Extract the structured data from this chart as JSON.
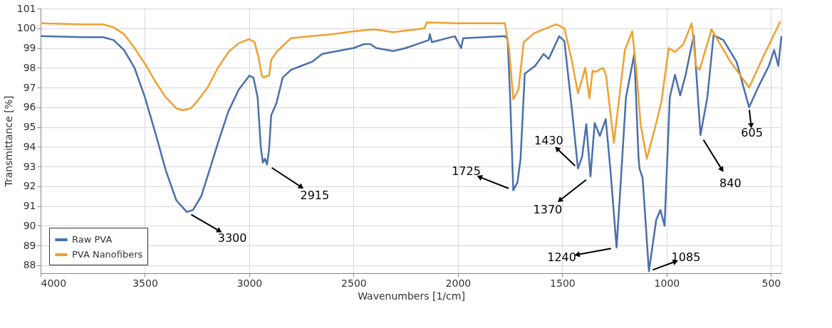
{
  "chart_data": {
    "type": "line",
    "xlabel": "Wavenumbers [1/cm]",
    "ylabel": "Transmittance [%]",
    "xlim": [
      4000,
      450
    ],
    "xticks": [
      {
        "value": 4000,
        "label": "4000"
      },
      {
        "value": 3500,
        "label": "3500"
      },
      {
        "value": 3000,
        "label": "3000"
      },
      {
        "value": 2500,
        "label": "2500"
      },
      {
        "value": 2000,
        "label": "2000"
      },
      {
        "value": 1500,
        "label": "1500"
      },
      {
        "value": 1000,
        "label": "1000"
      },
      {
        "value": 500,
        "label": "500"
      }
    ],
    "ylim": [
      87.6,
      101
    ],
    "yticks": [
      88,
      89,
      90,
      91,
      92,
      93,
      94,
      95,
      96,
      97,
      98,
      99,
      100,
      101
    ],
    "grid": true,
    "legend": "bottom left",
    "line_style": "solid",
    "marker": "none",
    "series": [
      {
        "name": "Raw PVA",
        "color": "#4a6fae",
        "x": [
          4000,
          3800,
          3700,
          3650,
          3600,
          3550,
          3500,
          3450,
          3400,
          3350,
          3300,
          3270,
          3230,
          3200,
          3150,
          3100,
          3050,
          3000,
          2980,
          2960,
          2945,
          2935,
          2925,
          2915,
          2905,
          2895,
          2870,
          2840,
          2800,
          2750,
          2700,
          2650,
          2600,
          2550,
          2500,
          2450,
          2420,
          2392,
          2310,
          2250,
          2140,
          2135,
          2125,
          2015,
          1985,
          1975,
          1775,
          1762,
          1750,
          1735,
          1715,
          1700,
          1680,
          1630,
          1590,
          1565,
          1515,
          1490,
          1455,
          1425,
          1405,
          1385,
          1365,
          1345,
          1320,
          1292,
          1270,
          1240,
          1220,
          1195,
          1155,
          1135,
          1130,
          1115,
          1085,
          1050,
          1030,
          1010,
          985,
          960,
          935,
          910,
          870,
          857,
          838,
          805,
          775,
          728,
          665,
          605,
          560,
          510,
          485,
          465,
          450
        ],
        "values": [
          99.6,
          99.55,
          99.55,
          99.4,
          98.9,
          98.0,
          96.5,
          94.7,
          92.8,
          91.3,
          90.7,
          90.8,
          91.5,
          92.5,
          94.2,
          95.8,
          96.9,
          97.6,
          97.5,
          96.5,
          94.0,
          93.2,
          93.4,
          93.1,
          93.9,
          95.6,
          96.2,
          97.5,
          97.9,
          98.1,
          98.3,
          98.7,
          98.8,
          98.9,
          99.0,
          99.2,
          99.2,
          99.0,
          98.85,
          99.0,
          99.4,
          99.7,
          99.3,
          99.6,
          99.0,
          99.5,
          99.6,
          99.45,
          96.5,
          91.8,
          92.2,
          93.4,
          97.7,
          98.1,
          98.7,
          98.45,
          99.6,
          99.35,
          96.0,
          92.9,
          93.5,
          95.15,
          92.5,
          95.2,
          94.55,
          95.4,
          92.9,
          88.9,
          92.2,
          96.5,
          98.7,
          93.5,
          92.9,
          92.4,
          87.7,
          90.3,
          90.8,
          90.0,
          96.5,
          97.65,
          96.6,
          97.6,
          99.65,
          97.6,
          94.6,
          96.5,
          99.65,
          99.4,
          98.3,
          96.0,
          97.05,
          98.1,
          98.9,
          98.1,
          99.6
        ]
      },
      {
        "name": "PVA Nanofibers",
        "color": "#f0a030",
        "x": [
          4000,
          3800,
          3700,
          3650,
          3600,
          3550,
          3500,
          3450,
          3400,
          3350,
          3320,
          3280,
          3250,
          3200,
          3150,
          3100,
          3050,
          3000,
          2975,
          2955,
          2940,
          2930,
          2915,
          2905,
          2895,
          2870,
          2850,
          2800,
          2700,
          2600,
          2500,
          2400,
          2310,
          2160,
          2150,
          2000,
          1775,
          1755,
          1735,
          1710,
          1685,
          1635,
          1530,
          1490,
          1455,
          1425,
          1390,
          1370,
          1355,
          1340,
          1305,
          1290,
          1253,
          1200,
          1165,
          1145,
          1125,
          1095,
          1050,
          1025,
          990,
          960,
          920,
          880,
          860,
          842,
          785,
          700,
          605,
          540,
          455
        ],
        "values": [
          100.25,
          100.2,
          100.2,
          100.05,
          99.7,
          99.0,
          98.2,
          97.3,
          96.5,
          95.95,
          95.85,
          95.95,
          96.3,
          97.0,
          98.0,
          98.8,
          99.25,
          99.45,
          99.3,
          98.5,
          97.6,
          97.5,
          97.6,
          97.6,
          98.4,
          98.8,
          99.0,
          99.5,
          99.6,
          99.7,
          99.85,
          99.95,
          99.8,
          100.0,
          100.3,
          100.25,
          100.25,
          98.95,
          96.4,
          96.9,
          99.3,
          99.75,
          100.2,
          100.0,
          98.4,
          96.7,
          98.0,
          96.45,
          97.85,
          97.8,
          98.0,
          97.6,
          94.2,
          98.9,
          99.85,
          97.85,
          95.15,
          93.4,
          95.2,
          96.3,
          99.0,
          98.8,
          99.2,
          100.25,
          98.1,
          97.9,
          99.95,
          98.4,
          97.0,
          98.5,
          100.35
        ]
      }
    ],
    "annotations": [
      {
        "text": "3300",
        "x": 3300,
        "y": 90.7
      },
      {
        "text": "2915",
        "x": 2915,
        "y": 93.1
      },
      {
        "text": "1725",
        "x": 1735,
        "y": 91.8
      },
      {
        "text": "1430",
        "x": 1425,
        "y": 92.9
      },
      {
        "text": "1370",
        "x": 1365,
        "y": 92.5
      },
      {
        "text": "1240",
        "x": 1240,
        "y": 88.9
      },
      {
        "text": "1085",
        "x": 1085,
        "y": 87.7
      },
      {
        "text": "840",
        "x": 838,
        "y": 94.6
      },
      {
        "text": "605",
        "x": 605,
        "y": 96.0
      }
    ]
  }
}
